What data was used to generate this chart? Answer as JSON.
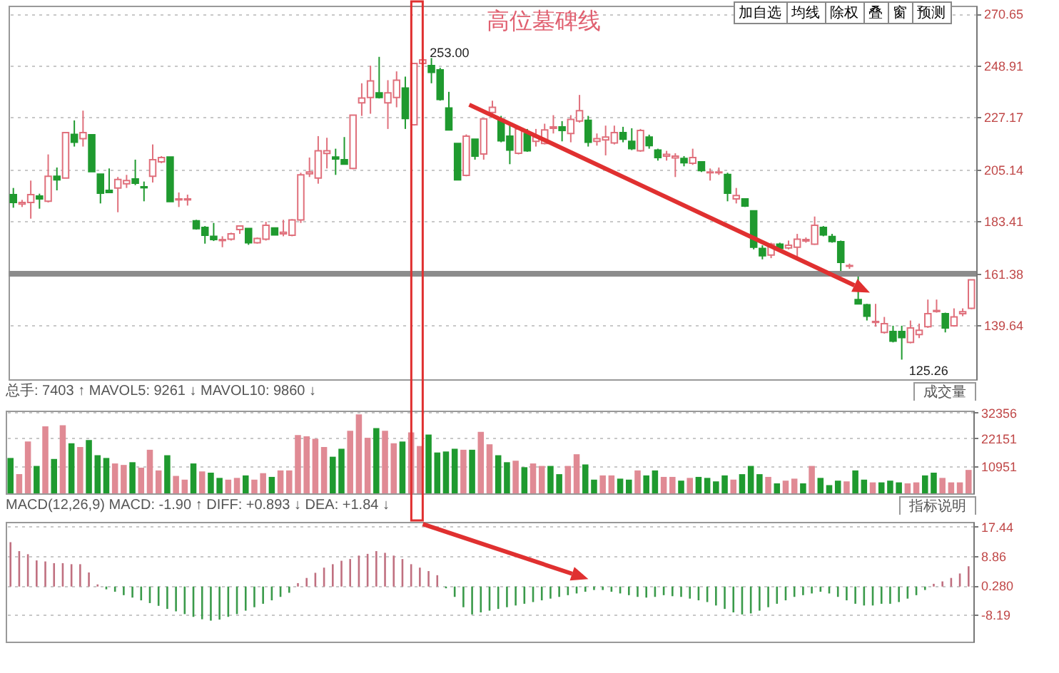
{
  "chart_data": [
    {
      "type": "candlestick",
      "categories": [
        null,
        null,
        null,
        null,
        null,
        null,
        null,
        null,
        null,
        null,
        null,
        null,
        null,
        null,
        null,
        null,
        null,
        null,
        null,
        null,
        null,
        null,
        null,
        null,
        null,
        null,
        null,
        null,
        null,
        null,
        null,
        null,
        null,
        null,
        null,
        null,
        null,
        null,
        null,
        null,
        null,
        null,
        null,
        null,
        null,
        null,
        null,
        null,
        null,
        null,
        null,
        null,
        null,
        null,
        null,
        null,
        null,
        null,
        null,
        null,
        null,
        null,
        null,
        null,
        null,
        null,
        null,
        null,
        null,
        null,
        null,
        null,
        null,
        null,
        null,
        null,
        null,
        null,
        null,
        null,
        null,
        null,
        null,
        null,
        null,
        null,
        null,
        null,
        null,
        null,
        null,
        null,
        null,
        null,
        null,
        null,
        null,
        null,
        null,
        null,
        null,
        null,
        null,
        null,
        null,
        null,
        null,
        null,
        null,
        null,
        null
      ],
      "ohlc": [
        [
          194.6,
          197.4,
          189.1,
          191.3
        ],
        [
          190.6,
          192.4,
          189.4,
          191.3
        ],
        [
          191.3,
          200.5,
          184.5,
          194.6
        ],
        [
          194.0,
          195.0,
          188.7,
          192.8
        ],
        [
          191.8,
          211.5,
          191.3,
          202.3
        ],
        [
          202.3,
          206.0,
          196.4,
          200.8
        ],
        [
          201.6,
          220.7,
          201.6,
          220.7
        ],
        [
          219.9,
          225.8,
          214.8,
          216.6
        ],
        [
          218.1,
          229.9,
          214.8,
          220.7
        ],
        [
          219.8,
          219.8,
          204.3,
          204.3
        ],
        [
          203.2,
          203.2,
          190.9,
          195.2
        ],
        [
          196.4,
          205.6,
          195.2,
          195.5
        ],
        [
          197.4,
          202.0,
          187.2,
          201.0
        ],
        [
          199.2,
          202.9,
          197.4,
          200.5
        ],
        [
          201.2,
          209.3,
          198.6,
          199.4
        ],
        [
          197.9,
          200.1,
          191.8,
          197.5
        ],
        [
          202.3,
          215.7,
          199.7,
          209.3
        ],
        [
          208.4,
          210.8,
          207.8,
          210.2
        ],
        [
          210.4,
          210.4,
          191.7,
          191.7
        ],
        [
          192.4,
          195.5,
          189.4,
          192.8
        ],
        [
          192.4,
          194.6,
          190.0,
          192.8
        ],
        [
          183.6,
          184.0,
          179.9,
          180.3
        ],
        [
          180.8,
          181.4,
          174.0,
          177.5
        ],
        [
          177.1,
          182.7,
          175.1,
          175.7
        ],
        [
          175.3,
          177.1,
          172.5,
          175.7
        ],
        [
          175.9,
          178.6,
          175.3,
          178.1
        ],
        [
          179.9,
          181.7,
          178.1,
          181.4
        ],
        [
          180.4,
          180.4,
          173.5,
          174.4
        ],
        [
          174.4,
          176.6,
          174.0,
          176.2
        ],
        [
          175.9,
          183.2,
          175.3,
          181.7
        ],
        [
          180.6,
          180.6,
          177.7,
          177.7
        ],
        [
          178.1,
          184.0,
          177.1,
          178.8
        ],
        [
          177.5,
          184.3,
          177.1,
          184.0
        ],
        [
          184.0,
          203.8,
          182.7,
          202.9
        ],
        [
          203.4,
          210.2,
          202.0,
          204.1
        ],
        [
          201.6,
          219.2,
          199.2,
          213.0
        ],
        [
          211.9,
          218.5,
          205.6,
          213.0
        ],
        [
          210.4,
          213.9,
          202.9,
          209.6
        ],
        [
          209.3,
          218.8,
          207.4,
          207.4
        ],
        [
          205.6,
          228.0,
          205.3,
          228.0
        ],
        [
          233.2,
          241.4,
          227.7,
          235.2
        ],
        [
          235.4,
          248.8,
          228.6,
          242.4
        ],
        [
          237.4,
          252.5,
          235.0,
          235.4
        ],
        [
          233.2,
          242.7,
          222.2,
          237.4
        ],
        [
          235.4,
          246.4,
          231.3,
          242.7
        ],
        [
          239.4,
          244.2,
          222.2,
          226.6
        ],
        [
          224.0,
          249.7,
          223.6,
          249.7
        ],
        [
          249.7,
          253.0,
          244.2,
          251.2
        ],
        [
          248.8,
          252.0,
          241.4,
          246.0
        ],
        [
          247.0,
          247.9,
          234.1,
          234.6
        ],
        [
          231.0,
          237.8,
          221.8,
          221.8
        ],
        [
          216.1,
          216.1,
          200.8,
          200.8
        ],
        [
          202.7,
          219.9,
          202.3,
          219.2
        ],
        [
          217.9,
          217.9,
          209.3,
          210.8
        ],
        [
          211.7,
          226.4,
          209.3,
          226.4
        ],
        [
          229.1,
          234.1,
          228.0,
          231.3
        ],
        [
          226.2,
          227.7,
          216.6,
          217.2
        ],
        [
          219.2,
          224.0,
          207.4,
          213.3
        ],
        [
          212.0,
          223.1,
          211.5,
          222.2
        ],
        [
          220.3,
          222.2,
          212.6,
          213.0
        ],
        [
          217.0,
          222.2,
          214.8,
          218.8
        ],
        [
          216.1,
          224.4,
          215.7,
          221.8
        ],
        [
          222.5,
          228.0,
          220.3,
          223.1
        ],
        [
          223.1,
          225.5,
          217.0,
          221.6
        ],
        [
          220.3,
          228.0,
          216.6,
          226.2
        ],
        [
          225.5,
          236.5,
          224.9,
          229.9
        ],
        [
          225.8,
          227.7,
          214.8,
          216.6
        ],
        [
          217.0,
          220.3,
          215.2,
          218.1
        ],
        [
          217.6,
          223.6,
          211.1,
          218.8
        ],
        [
          216.3,
          223.6,
          215.7,
          220.7
        ],
        [
          220.7,
          223.1,
          216.6,
          217.9
        ],
        [
          217.0,
          222.5,
          213.3,
          213.9
        ],
        [
          213.0,
          222.2,
          212.6,
          221.6
        ],
        [
          218.8,
          219.8,
          213.9,
          215.2
        ],
        [
          213.3,
          213.9,
          208.9,
          210.2
        ],
        [
          210.8,
          213.0,
          208.9,
          211.5
        ],
        [
          210.0,
          212.0,
          202.0,
          210.8
        ],
        [
          209.8,
          210.8,
          206.5,
          208.0
        ],
        [
          207.8,
          213.9,
          207.1,
          210.2
        ],
        [
          208.4,
          208.4,
          204.1,
          204.7
        ],
        [
          203.8,
          205.6,
          200.5,
          204.1
        ],
        [
          203.8,
          206.0,
          202.9,
          204.1
        ],
        [
          203.1,
          203.8,
          191.8,
          195.2
        ],
        [
          192.8,
          197.4,
          190.9,
          194.2
        ],
        [
          192.8,
          193.1,
          189.4,
          189.8
        ],
        [
          187.8,
          187.8,
          171.6,
          172.5
        ],
        [
          172.0,
          173.3,
          167.4,
          168.9
        ],
        [
          169.2,
          174.4,
          167.9,
          173.8
        ],
        [
          173.8,
          174.4,
          171.6,
          172.0
        ],
        [
          172.2,
          175.3,
          171.6,
          173.3
        ],
        [
          172.5,
          178.1,
          167.9,
          175.9
        ],
        [
          175.1,
          176.6,
          174.4,
          175.7
        ],
        [
          173.8,
          185.4,
          173.5,
          181.7
        ],
        [
          180.8,
          181.4,
          177.1,
          177.7
        ],
        [
          177.0,
          178.1,
          174.4,
          174.9
        ],
        [
          174.8,
          175.3,
          161.2,
          166.1
        ],
        [
          164.5,
          165.6,
          163.4,
          164.8
        ],
        [
          150.5,
          162.4,
          148.7,
          148.7
        ],
        [
          148.3,
          148.7,
          141.7,
          143.5
        ],
        [
          140.9,
          148.7,
          139.1,
          141.3
        ],
        [
          136.7,
          143.2,
          136.2,
          140.4
        ],
        [
          137.1,
          139.5,
          132.5,
          133.0
        ],
        [
          137.1,
          139.5,
          125.26,
          134.5
        ],
        [
          132.5,
          141.7,
          132.1,
          138.6
        ],
        [
          135.8,
          140.4,
          134.3,
          137.6
        ],
        [
          139.1,
          150.5,
          138.6,
          144.6
        ],
        [
          145.5,
          150.5,
          145.0,
          145.9
        ],
        [
          144.6,
          145.0,
          136.7,
          138.6
        ],
        [
          139.5,
          146.8,
          139.1,
          143.2
        ],
        [
          144.6,
          146.8,
          143.5,
          145.4
        ],
        [
          146.8,
          158.8,
          146.5,
          158.8
        ]
      ],
      "ylim": [
        117,
        274
      ],
      "yticks": [
        139.64,
        161.38,
        183.41,
        205.14,
        227.17,
        248.91,
        270.65
      ],
      "grid": "y",
      "tick_labels": "y",
      "ref_lines": [
        {
          "axis": "y",
          "value": 161.38,
          "color": "#8c8c8c"
        }
      ],
      "annotations": [
        "高位墓碑线",
        "253.00",
        "125.26",
        "加自选",
        "均线",
        "除权",
        "叠",
        "窗",
        "预测"
      ]
    },
    {
      "type": "bar",
      "categories": [
        null,
        null,
        null,
        null,
        null,
        null,
        null,
        null,
        null,
        null,
        null,
        null,
        null,
        null,
        null,
        null,
        null,
        null,
        null,
        null,
        null,
        null,
        null,
        null,
        null,
        null,
        null,
        null,
        null,
        null,
        null,
        null,
        null,
        null,
        null,
        null,
        null,
        null,
        null,
        null,
        null,
        null,
        null,
        null,
        null,
        null,
        null,
        null,
        null,
        null,
        null,
        null,
        null,
        null,
        null,
        null,
        null,
        null,
        null,
        null,
        null,
        null,
        null,
        null,
        null,
        null,
        null,
        null,
        null,
        null,
        null,
        null,
        null,
        null,
        null,
        null,
        null,
        null,
        null,
        null,
        null,
        null,
        null,
        null,
        null,
        null,
        null,
        null,
        null,
        null,
        null,
        null,
        null,
        null,
        null,
        null,
        null,
        null,
        null,
        null,
        null,
        null,
        null,
        null,
        null,
        null,
        null,
        null,
        null,
        null,
        null
      ],
      "values": [
        14200,
        7700,
        20800,
        11000,
        26900,
        13800,
        27300,
        20100,
        18600,
        21400,
        15300,
        14200,
        12000,
        11400,
        12500,
        10300,
        17500,
        9200,
        15300,
        7000,
        5500,
        12000,
        8800,
        8300,
        6200,
        5500,
        6200,
        7200,
        5500,
        8100,
        6600,
        9200,
        9200,
        23400,
        22900,
        21900,
        18600,
        14700,
        17900,
        25100,
        31700,
        22300,
        26200,
        25100,
        20100,
        20800,
        24500,
        19000,
        23600,
        16400,
        16800,
        17900,
        17500,
        17500,
        24700,
        19700,
        15300,
        12500,
        13100,
        10500,
        12000,
        11000,
        11000,
        7700,
        11000,
        15700,
        11600,
        5500,
        7200,
        7200,
        5900,
        5500,
        9200,
        7200,
        9200,
        6600,
        6600,
        5100,
        6200,
        6600,
        6200,
        4800,
        7200,
        5500,
        7700,
        11000,
        7700,
        6600,
        4000,
        5100,
        5900,
        4000,
        11000,
        6200,
        3300,
        5100,
        4800,
        9200,
        5500,
        4400,
        4400,
        5100,
        4400,
        4000,
        4400,
        7200,
        8300,
        6200,
        4400,
        4400,
        9400
      ],
      "colors": [
        "#1f9a2f",
        "#e08a94",
        "#e08a94",
        "#1f9a2f",
        "#e08a94",
        "#1f9a2f",
        "#e08a94",
        "#1f9a2f",
        "#e08a94",
        "#1f9a2f",
        "#1f9a2f",
        "#1f9a2f",
        "#e08a94",
        "#e08a94",
        "#1f9a2f",
        "#e08a94",
        "#e08a94",
        "#e08a94",
        "#1f9a2f",
        "#e08a94",
        "#e08a94",
        "#1f9a2f",
        "#e08a94",
        "#1f9a2f",
        "#1f9a2f",
        "#e08a94",
        "#e08a94",
        "#1f9a2f",
        "#e08a94",
        "#e08a94",
        "#1f9a2f",
        "#e08a94",
        "#e08a94",
        "#e08a94",
        "#e08a94",
        "#e08a94",
        "#e08a94",
        "#1f9a2f",
        "#1f9a2f",
        "#e08a94",
        "#e08a94",
        "#e08a94",
        "#1f9a2f",
        "#e08a94",
        "#e08a94",
        "#1f9a2f",
        "#e08a94",
        "#e08a94",
        "#1f9a2f",
        "#1f9a2f",
        "#1f9a2f",
        "#1f9a2f",
        "#e08a94",
        "#1f9a2f",
        "#e08a94",
        "#e08a94",
        "#1f9a2f",
        "#1f9a2f",
        "#e08a94",
        "#1f9a2f",
        "#e08a94",
        "#e08a94",
        "#1f9a2f",
        "#1f9a2f",
        "#e08a94",
        "#e08a94",
        "#1f9a2f",
        "#1f9a2f",
        "#e08a94",
        "#e08a94",
        "#1f9a2f",
        "#1f9a2f",
        "#e08a94",
        "#1f9a2f",
        "#1f9a2f",
        "#e08a94",
        "#e08a94",
        "#1f9a2f",
        "#e08a94",
        "#1f9a2f",
        "#1f9a2f",
        "#1f9a2f",
        "#1f9a2f",
        "#e08a94",
        "#1f9a2f",
        "#1f9a2f",
        "#1f9a2f",
        "#e08a94",
        "#1f9a2f",
        "#e08a94",
        "#e08a94",
        "#1f9a2f",
        "#e08a94",
        "#1f9a2f",
        "#1f9a2f",
        "#1f9a2f",
        "#e08a94",
        "#1f9a2f",
        "#1f9a2f",
        "#e08a94",
        "#1f9a2f",
        "#1f9a2f",
        "#1f9a2f",
        "#e08a94",
        "#e08a94",
        "#1f9a2f",
        "#1f9a2f",
        "#e08a94",
        "#e08a94",
        "#e08a94",
        "#e08a94"
      ],
      "ylim": [
        0,
        33200
      ],
      "yticks": [
        10951,
        22151,
        32356
      ],
      "grid": "y",
      "tick_labels": "y",
      "annotations": [
        "总手: 7403 ↑  MAVOL5: 9261 ↓  MAVOL10: 9860 ↓",
        "成交量"
      ]
    },
    {
      "type": "bar",
      "categories": [
        null,
        null,
        null,
        null,
        null,
        null,
        null,
        null,
        null,
        null,
        null,
        null,
        null,
        null,
        null,
        null,
        null,
        null,
        null,
        null,
        null,
        null,
        null,
        null,
        null,
        null,
        null,
        null,
        null,
        null,
        null,
        null,
        null,
        null,
        null,
        null,
        null,
        null,
        null,
        null,
        null,
        null,
        null,
        null,
        null,
        null,
        null,
        null,
        null,
        null,
        null,
        null,
        null,
        null,
        null,
        null,
        null,
        null,
        null,
        null,
        null,
        null,
        null,
        null,
        null,
        null,
        null,
        null,
        null,
        null,
        null,
        null,
        null,
        null,
        null,
        null,
        null,
        null,
        null,
        null,
        null,
        null,
        null,
        null,
        null,
        null,
        null,
        null,
        null,
        null,
        null,
        null,
        null,
        null,
        null,
        null,
        null,
        null,
        null,
        null,
        null,
        null,
        null,
        null,
        null,
        null,
        null,
        null,
        null,
        null,
        null
      ],
      "values": [
        12.9,
        10.3,
        9.4,
        7.6,
        7.3,
        6.8,
        6.8,
        6.5,
        6.5,
        4.1,
        0.6,
        -0.8,
        -1.5,
        -2.5,
        -3.2,
        -4.0,
        -4.8,
        -5.6,
        -6.5,
        -7.2,
        -8.0,
        -8.8,
        -9.5,
        -9.9,
        -9.6,
        -8.8,
        -8.0,
        -7.0,
        -6.0,
        -5.0,
        -4.0,
        -3.0,
        -1.8,
        1.0,
        2.5,
        4.0,
        5.5,
        6.5,
        7.5,
        8.0,
        9.0,
        9.5,
        10.3,
        9.8,
        9.0,
        8.0,
        6.5,
        5.5,
        4.5,
        3.3,
        -0.5,
        -3.0,
        -6.0,
        -8.1,
        -7.5,
        -7.0,
        -6.5,
        -6.0,
        -5.5,
        -5.0,
        -4.5,
        -4.0,
        -3.5,
        -3.0,
        -2.5,
        -2.0,
        -1.5,
        -1.0,
        -1.0,
        -1.5,
        -2.0,
        -2.5,
        -3.0,
        -3.2,
        -3.0,
        -2.5,
        -2.8,
        -3.0,
        -3.5,
        -4.0,
        -4.5,
        -5.5,
        -6.5,
        -7.5,
        -8.1,
        -7.8,
        -7.0,
        -6.0,
        -5.0,
        -4.0,
        -3.0,
        -2.5,
        -2.0,
        -1.5,
        -2.0,
        -3.0,
        -4.0,
        -5.0,
        -5.5,
        -5.5,
        -5.0,
        -5.0,
        -4.5,
        -3.5,
        -2.5,
        -1.0,
        0.8,
        1.5,
        2.5,
        3.8,
        5.9
      ],
      "colors": [
        "#c07080",
        "#c07080",
        "#c07080",
        "#c07080",
        "#c07080",
        "#c07080",
        "#c07080",
        "#c07080",
        "#c07080",
        "#c07080",
        "#c07080",
        "#3a9a4a",
        "#3a9a4a",
        "#3a9a4a",
        "#3a9a4a",
        "#3a9a4a",
        "#3a9a4a",
        "#3a9a4a",
        "#3a9a4a",
        "#3a9a4a",
        "#3a9a4a",
        "#3a9a4a",
        "#3a9a4a",
        "#3a9a4a",
        "#3a9a4a",
        "#3a9a4a",
        "#3a9a4a",
        "#3a9a4a",
        "#3a9a4a",
        "#3a9a4a",
        "#3a9a4a",
        "#3a9a4a",
        "#3a9a4a",
        "#c07080",
        "#c07080",
        "#c07080",
        "#c07080",
        "#c07080",
        "#c07080",
        "#c07080",
        "#c07080",
        "#c07080",
        "#c07080",
        "#c07080",
        "#c07080",
        "#c07080",
        "#c07080",
        "#c07080",
        "#c07080",
        "#c07080",
        "#3a9a4a",
        "#3a9a4a",
        "#3a9a4a",
        "#3a9a4a",
        "#3a9a4a",
        "#3a9a4a",
        "#3a9a4a",
        "#3a9a4a",
        "#3a9a4a",
        "#3a9a4a",
        "#3a9a4a",
        "#3a9a4a",
        "#3a9a4a",
        "#3a9a4a",
        "#3a9a4a",
        "#3a9a4a",
        "#3a9a4a",
        "#3a9a4a",
        "#3a9a4a",
        "#3a9a4a",
        "#3a9a4a",
        "#3a9a4a",
        "#3a9a4a",
        "#3a9a4a",
        "#3a9a4a",
        "#3a9a4a",
        "#3a9a4a",
        "#3a9a4a",
        "#3a9a4a",
        "#3a9a4a",
        "#3a9a4a",
        "#3a9a4a",
        "#3a9a4a",
        "#3a9a4a",
        "#3a9a4a",
        "#3a9a4a",
        "#3a9a4a",
        "#3a9a4a",
        "#3a9a4a",
        "#3a9a4a",
        "#3a9a4a",
        "#3a9a4a",
        "#3a9a4a",
        "#3a9a4a",
        "#3a9a4a",
        "#3a9a4a",
        "#3a9a4a",
        "#3a9a4a",
        "#3a9a4a",
        "#3a9a4a",
        "#3a9a4a",
        "#3a9a4a",
        "#3a9a4a",
        "#3a9a4a",
        "#3a9a4a",
        "#3a9a4a",
        "#c07080",
        "#c07080",
        "#c07080",
        "#c07080",
        "#c07080"
      ],
      "ylim": [
        -16,
        18.8
      ],
      "yticks": [
        -8.19,
        {
          "value": 0.28,
          "label": "0.280"
        },
        8.86,
        17.44
      ],
      "grid": "y",
      "tick_labels": "y",
      "annotations": [
        "MACD(12,26,9)  MACD: -1.90 ↑  DIFF: +0.893 ↓  DEA: +1.84 ↓",
        "指标说明"
      ]
    }
  ]
}
